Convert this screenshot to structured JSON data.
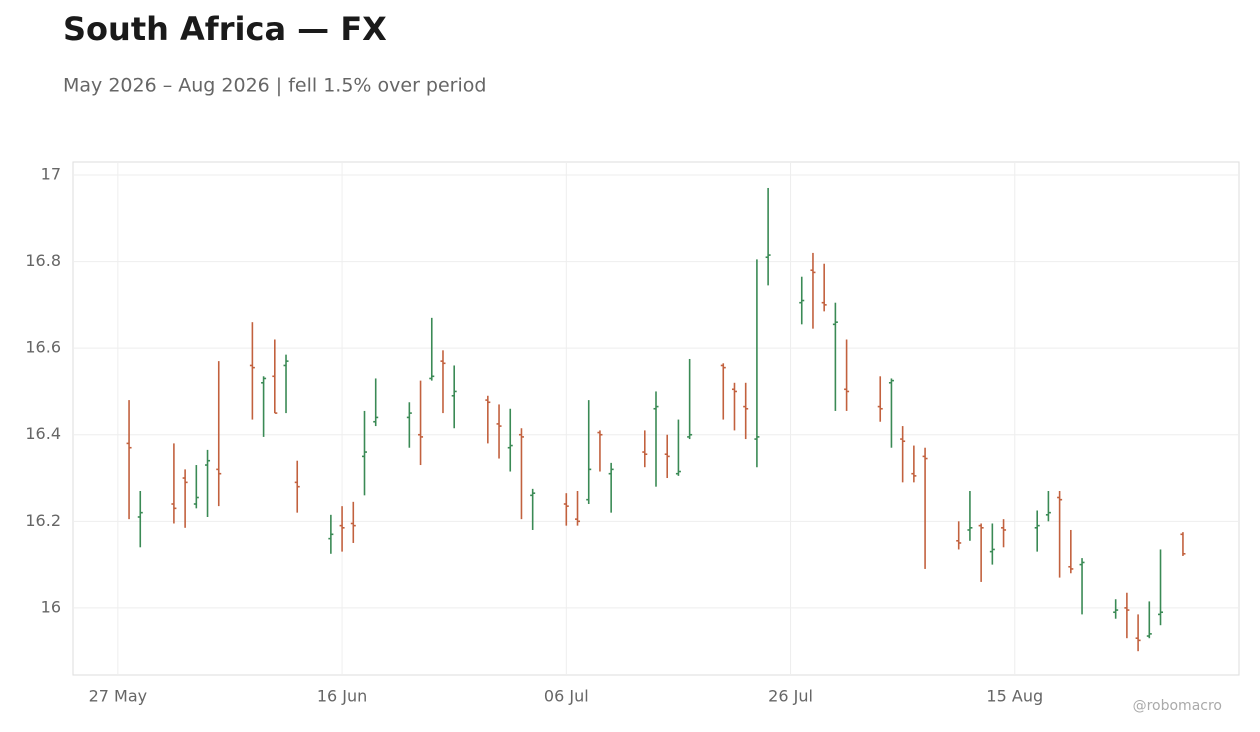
{
  "chart_data": {
    "type": "ohlc",
    "title": "South Africa — FX",
    "subtitle": "May 2026 – Aug 2026 | fell 1.5% over period",
    "watermark": "@robomacro",
    "up_color": "#3a8a55",
    "down_color": "#c2613e",
    "grid": true,
    "xlim": [
      "2026-05-23",
      "2026-09-04"
    ],
    "xticks": [
      {
        "value": "2026-05-27",
        "label": "27 May"
      },
      {
        "value": "2026-06-16",
        "label": "16 Jun"
      },
      {
        "value": "2026-07-06",
        "label": "06 Jul"
      },
      {
        "value": "2026-07-26",
        "label": "26 Jul"
      },
      {
        "value": "2026-08-15",
        "label": "15 Aug"
      }
    ],
    "ylim": [
      15.845,
      17.03
    ],
    "yticks": [
      16,
      16.2,
      16.4,
      16.6,
      16.8,
      17
    ],
    "x": [
      "2026-05-28",
      "2026-05-29",
      "2026-06-01",
      "2026-06-02",
      "2026-06-03",
      "2026-06-04",
      "2026-06-05",
      "2026-06-08",
      "2026-06-09",
      "2026-06-10",
      "2026-06-11",
      "2026-06-12",
      "2026-06-15",
      "2026-06-16",
      "2026-06-17",
      "2026-06-18",
      "2026-06-19",
      "2026-06-22",
      "2026-06-23",
      "2026-06-24",
      "2026-06-25",
      "2026-06-26",
      "2026-06-29",
      "2026-06-30",
      "2026-07-01",
      "2026-07-02",
      "2026-07-03",
      "2026-07-06",
      "2026-07-07",
      "2026-07-08",
      "2026-07-09",
      "2026-07-10",
      "2026-07-13",
      "2026-07-14",
      "2026-07-15",
      "2026-07-16",
      "2026-07-17",
      "2026-07-20",
      "2026-07-21",
      "2026-07-22",
      "2026-07-23",
      "2026-07-24",
      "2026-07-27",
      "2026-07-28",
      "2026-07-29",
      "2026-07-30",
      "2026-07-31",
      "2026-08-03",
      "2026-08-04",
      "2026-08-05",
      "2026-08-06",
      "2026-08-07",
      "2026-08-10",
      "2026-08-11",
      "2026-08-12",
      "2026-08-13",
      "2026-08-14",
      "2026-08-17",
      "2026-08-18",
      "2026-08-19",
      "2026-08-20",
      "2026-08-21",
      "2026-08-24",
      "2026-08-25",
      "2026-08-26",
      "2026-08-27",
      "2026-08-28",
      "2026-08-30"
    ],
    "open": [
      16.38,
      16.21,
      16.24,
      16.3,
      16.24,
      16.33,
      16.32,
      16.56,
      16.52,
      16.535,
      16.56,
      16.29,
      16.16,
      16.19,
      16.195,
      16.35,
      16.43,
      16.44,
      16.4,
      16.53,
      16.57,
      16.49,
      16.48,
      16.425,
      16.37,
      16.4,
      16.26,
      16.24,
      16.205,
      16.25,
      16.405,
      16.31,
      16.36,
      16.46,
      16.355,
      16.31,
      16.395,
      16.56,
      16.505,
      16.465,
      16.39,
      16.81,
      16.705,
      16.78,
      16.705,
      16.655,
      16.505,
      16.465,
      16.52,
      16.39,
      16.31,
      16.35,
      16.155,
      16.18,
      16.19,
      16.13,
      16.185,
      16.185,
      16.215,
      16.255,
      16.095,
      16.1,
      15.99,
      16.0,
      15.93,
      15.935,
      15.985,
      16.17
    ],
    "high": [
      16.48,
      16.27,
      16.38,
      16.32,
      16.33,
      16.365,
      16.57,
      16.66,
      16.535,
      16.62,
      16.585,
      16.34,
      16.215,
      16.235,
      16.245,
      16.455,
      16.53,
      16.475,
      16.525,
      16.67,
      16.595,
      16.56,
      16.49,
      16.47,
      16.46,
      16.415,
      16.275,
      16.265,
      16.27,
      16.48,
      16.41,
      16.335,
      16.41,
      16.5,
      16.4,
      16.435,
      16.575,
      16.565,
      16.52,
      16.52,
      16.805,
      16.97,
      16.765,
      16.82,
      16.795,
      16.705,
      16.62,
      16.535,
      16.53,
      16.42,
      16.375,
      16.37,
      16.2,
      16.27,
      16.195,
      16.195,
      16.205,
      16.225,
      16.27,
      16.27,
      16.18,
      16.115,
      16.02,
      16.035,
      15.985,
      16.015,
      16.135,
      16.175
    ],
    "low": [
      16.205,
      16.14,
      16.195,
      16.185,
      16.23,
      16.21,
      16.235,
      16.435,
      16.395,
      16.45,
      16.45,
      16.22,
      16.125,
      16.13,
      16.15,
      16.26,
      16.42,
      16.37,
      16.33,
      16.525,
      16.45,
      16.415,
      16.38,
      16.345,
      16.315,
      16.205,
      16.18,
      16.19,
      16.19,
      16.24,
      16.315,
      16.22,
      16.325,
      16.28,
      16.3,
      16.305,
      16.39,
      16.435,
      16.41,
      16.39,
      16.325,
      16.745,
      16.655,
      16.645,
      16.685,
      16.455,
      16.455,
      16.43,
      16.37,
      16.29,
      16.29,
      16.09,
      16.135,
      16.155,
      16.06,
      16.1,
      16.14,
      16.13,
      16.2,
      16.07,
      16.08,
      15.985,
      15.975,
      15.93,
      15.9,
      15.93,
      15.96,
      16.12
    ],
    "close": [
      16.37,
      16.22,
      16.23,
      16.29,
      16.255,
      16.34,
      16.31,
      16.555,
      16.53,
      16.45,
      16.57,
      16.28,
      16.17,
      16.185,
      16.19,
      16.36,
      16.44,
      16.45,
      16.395,
      16.535,
      16.565,
      16.5,
      16.475,
      16.42,
      16.375,
      16.395,
      16.265,
      16.235,
      16.2,
      16.32,
      16.4,
      16.32,
      16.355,
      16.465,
      16.35,
      16.315,
      16.4,
      16.555,
      16.5,
      16.46,
      16.395,
      16.815,
      16.71,
      16.775,
      16.7,
      16.66,
      16.5,
      16.46,
      16.525,
      16.385,
      16.305,
      16.345,
      16.15,
      16.185,
      16.185,
      16.135,
      16.18,
      16.19,
      16.22,
      16.25,
      16.09,
      16.105,
      15.995,
      15.995,
      15.925,
      15.94,
      15.99,
      16.125
    ]
  }
}
